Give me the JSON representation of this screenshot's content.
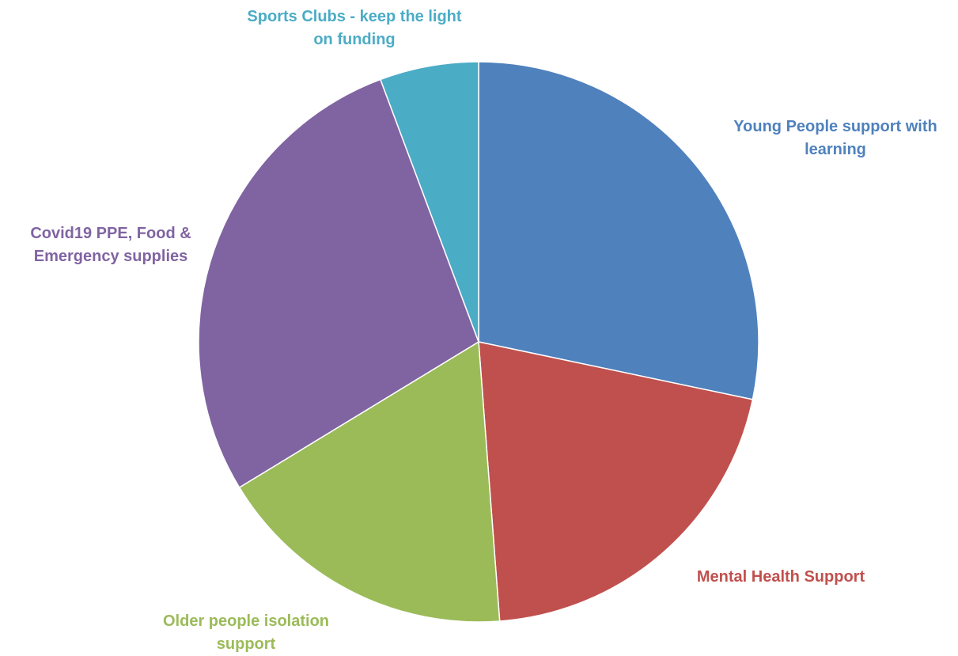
{
  "chart_data": {
    "type": "pie",
    "title": "",
    "start_angle_deg": 0,
    "direction": "clockwise",
    "legend": "none",
    "slices": [
      {
        "label": "Young People support with learning",
        "label_lines": [
          "Young People support with",
          "learning"
        ],
        "value": 28.3,
        "color": "#4F81BD"
      },
      {
        "label": "Mental Health Support",
        "label_lines": [
          "Mental Health Support"
        ],
        "value": 20.5,
        "color": "#C0504D"
      },
      {
        "label": "Older people isolation support",
        "label_lines": [
          "Older people isolation",
          "support"
        ],
        "value": 17.5,
        "color": "#9BBB59"
      },
      {
        "label": "Covid19 PPE, Food & Emergency supplies",
        "label_lines": [
          "Covid19 PPE, Food &",
          "Emergency supplies"
        ],
        "value": 28.0,
        "color": "#8064A2"
      },
      {
        "label": "Sports Clubs - keep the light on funding",
        "label_lines": [
          "Sports Clubs - keep the light",
          "on funding"
        ],
        "value": 5.7,
        "color": "#4BACC6"
      }
    ]
  }
}
